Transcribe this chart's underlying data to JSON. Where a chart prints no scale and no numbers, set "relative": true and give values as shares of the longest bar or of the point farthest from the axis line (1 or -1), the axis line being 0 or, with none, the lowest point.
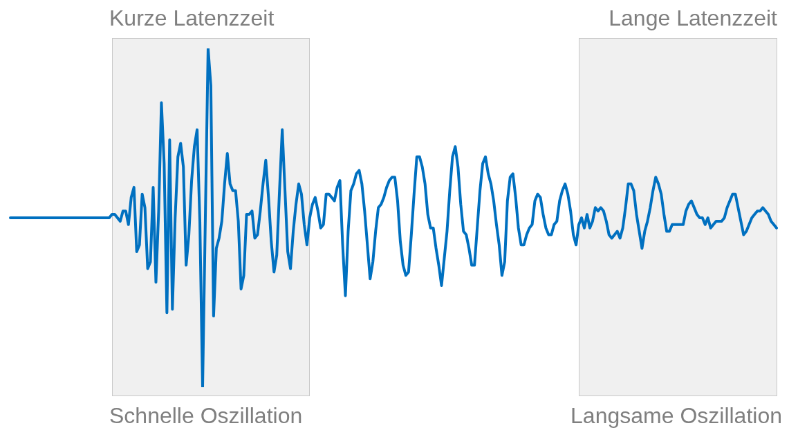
{
  "chart_data": {
    "type": "line",
    "relative": true,
    "legend": false,
    "marker": "none",
    "line_style": "solid",
    "categories": [
      null,
      null,
      null,
      null,
      null,
      null,
      null,
      null,
      null,
      null,
      null,
      null,
      null,
      null,
      null,
      null,
      null,
      null,
      null,
      null,
      null,
      null,
      null,
      null,
      null,
      null,
      null,
      null,
      null,
      null,
      null,
      null,
      null,
      null,
      null,
      null,
      null,
      null,
      null,
      null,
      null,
      null,
      null,
      null,
      null,
      null,
      null,
      null,
      null,
      null,
      null,
      null,
      null,
      null,
      null,
      null,
      null,
      null,
      null,
      null,
      null,
      null,
      null,
      null,
      null,
      null,
      null,
      null,
      null,
      null,
      null,
      null,
      null,
      null,
      null,
      null,
      null,
      null,
      null,
      null,
      null,
      null,
      null,
      null,
      null,
      null,
      null,
      null,
      null,
      null,
      null,
      null,
      null,
      null,
      null,
      null,
      null,
      null,
      null,
      null,
      null,
      null,
      null,
      null,
      null,
      null,
      null,
      null,
      null,
      null,
      null,
      null,
      null,
      null,
      null,
      null,
      null,
      null,
      null,
      null,
      null,
      null,
      null,
      null,
      null,
      null,
      null,
      null,
      null,
      null,
      null,
      null,
      null,
      null,
      null,
      null,
      null,
      null,
      null,
      null,
      null,
      null,
      null,
      null,
      null,
      null,
      null,
      null,
      null,
      null,
      null,
      null,
      null,
      null,
      null,
      null,
      null,
      null,
      null,
      null,
      null,
      null,
      null,
      null,
      null,
      null,
      null,
      null,
      null,
      null,
      null,
      null,
      null,
      null,
      null,
      null,
      null,
      null,
      null,
      null,
      null,
      null,
      null,
      null,
      null,
      null,
      null,
      null,
      null,
      null,
      null,
      null,
      null,
      null,
      null,
      null,
      null,
      null,
      null,
      null,
      null,
      null,
      null,
      null,
      null,
      null,
      null,
      null,
      null,
      null,
      null,
      null,
      null,
      null,
      null,
      null,
      null,
      null,
      null,
      null,
      null,
      null,
      null,
      null,
      null,
      null,
      null,
      null,
      null,
      null,
      null,
      null,
      null,
      null,
      null,
      null,
      null,
      null,
      null,
      null,
      null,
      null,
      null,
      null,
      null,
      null,
      null,
      null,
      null,
      null,
      null,
      null,
      null,
      null,
      null,
      null,
      null,
      null,
      null,
      null,
      null,
      null,
      null,
      null,
      null,
      null,
      null,
      null,
      null,
      null,
      null,
      null,
      null,
      null,
      null,
      null,
      null,
      null,
      null,
      null
    ],
    "series": [
      {
        "color": "#0070c0",
        "values": [
          0.5,
          0.5,
          0.5,
          0.5,
          0.5,
          0.5,
          0.5,
          0.5,
          0.5,
          0.5,
          0.5,
          0.5,
          0.5,
          0.5,
          0.5,
          0.5,
          0.5,
          0.5,
          0.5,
          0.5,
          0.5,
          0.5,
          0.5,
          0.5,
          0.5,
          0.5,
          0.5,
          0.5,
          0.5,
          0.5,
          0.5,
          0.5,
          0.5,
          0.5,
          0.5,
          0.5,
          0.5,
          0.51,
          0.51,
          0.5,
          0.49,
          0.52,
          0.52,
          0.48,
          0.56,
          0.59,
          0.4,
          0.42,
          0.57,
          0.53,
          0.35,
          0.37,
          0.59,
          0.31,
          0.52,
          0.84,
          0.66,
          0.22,
          0.73,
          0.23,
          0.5,
          0.68,
          0.72,
          0.65,
          0.36,
          0.45,
          0.61,
          0.71,
          0.76,
          0.49,
          0,
          0.5,
          1,
          0.89,
          0.21,
          0.41,
          0.44,
          0.49,
          0.6,
          0.69,
          0.6,
          0.58,
          0.58,
          0.49,
          0.29,
          0.33,
          0.51,
          0.51,
          0.52,
          0.44,
          0.45,
          0.52,
          0.6,
          0.67,
          0.56,
          0.43,
          0.34,
          0.39,
          0.58,
          0.76,
          0.58,
          0.4,
          0.35,
          0.46,
          0.54,
          0.6,
          0.57,
          0.48,
          0.42,
          0.5,
          0.54,
          0.56,
          0.52,
          0.47,
          0.48,
          0.57,
          0.57,
          0.56,
          0.55,
          0.59,
          0.61,
          0.42,
          0.27,
          0.46,
          0.58,
          0.6,
          0.63,
          0.64,
          0.6,
          0.52,
          0.42,
          0.32,
          0.37,
          0.46,
          0.53,
          0.54,
          0.56,
          0.59,
          0.61,
          0.62,
          0.62,
          0.55,
          0.43,
          0.36,
          0.33,
          0.34,
          0.45,
          0.57,
          0.68,
          0.68,
          0.65,
          0.6,
          0.51,
          0.47,
          0.47,
          0.41,
          0.36,
          0.3,
          0.38,
          0.46,
          0.58,
          0.68,
          0.71,
          0.65,
          0.54,
          0.46,
          0.45,
          0.41,
          0.36,
          0.36,
          0.47,
          0.58,
          0.66,
          0.68,
          0.63,
          0.6,
          0.55,
          0.48,
          0.42,
          0.33,
          0.37,
          0.55,
          0.62,
          0.63,
          0.56,
          0.47,
          0.42,
          0.42,
          0.45,
          0.47,
          0.48,
          0.55,
          0.57,
          0.56,
          0.51,
          0.47,
          0.45,
          0.45,
          0.48,
          0.49,
          0.55,
          0.58,
          0.6,
          0.57,
          0.52,
          0.45,
          0.42,
          0.48,
          0.5,
          0.47,
          0.51,
          0.47,
          0.49,
          0.53,
          0.52,
          0.53,
          0.52,
          0.49,
          0.45,
          0.44,
          0.45,
          0.46,
          0.44,
          0.47,
          0.53,
          0.6,
          0.6,
          0.58,
          0.51,
          0.46,
          0.41,
          0.46,
          0.49,
          0.53,
          0.58,
          0.62,
          0.6,
          0.57,
          0.51,
          0.46,
          0.46,
          0.48,
          0.48,
          0.48,
          0.48,
          0.48,
          0.52,
          0.54,
          0.55,
          0.53,
          0.51,
          0.5,
          0.5,
          0.48,
          0.5,
          0.47,
          0.48,
          0.49,
          0.49,
          0.49,
          0.5,
          0.53,
          0.55,
          0.57,
          0.57,
          0.53,
          0.49,
          0.45,
          0.46,
          0.48,
          0.5,
          0.51,
          0.52,
          0.52,
          0.53,
          0.52,
          0.51,
          0.49,
          0.48,
          0.47
        ]
      }
    ],
    "annotations": [
      "Kurze Latenzzeit",
      "Lange Latenzzeit",
      "Schnelle Oszillation",
      "Langsame Oszillation"
    ]
  }
}
